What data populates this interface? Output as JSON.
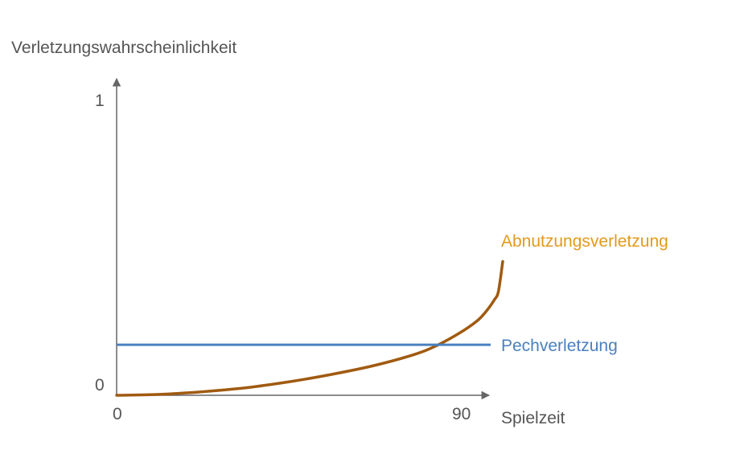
{
  "chart_data": {
    "type": "line",
    "ylabel": "Verletzungswahrscheinlichkeit",
    "xlabel": "Spielzeit",
    "xlim": [
      0,
      90
    ],
    "ylim": [
      0,
      1
    ],
    "x_ticks": [
      "0",
      "90"
    ],
    "y_ticks": [
      "1",
      "0"
    ],
    "grid": false,
    "legend": "inline-right",
    "series": [
      {
        "name": "Abnutzungsverletzung",
        "color": "#a05a10",
        "label_color": "#e29a1c",
        "x": [
          0,
          10,
          20,
          30,
          40,
          50,
          60,
          70,
          75,
          80,
          84,
          86,
          88,
          89,
          90
        ],
        "y": [
          0,
          0.003,
          0.012,
          0.025,
          0.045,
          0.07,
          0.1,
          0.14,
          0.17,
          0.21,
          0.25,
          0.28,
          0.32,
          0.35,
          0.45
        ]
      },
      {
        "name": "Pechverletzung",
        "color": "#4a80c0",
        "label_color": "#4a80c0",
        "x": [
          0,
          90
        ],
        "y": [
          0.17,
          0.17
        ]
      }
    ]
  }
}
